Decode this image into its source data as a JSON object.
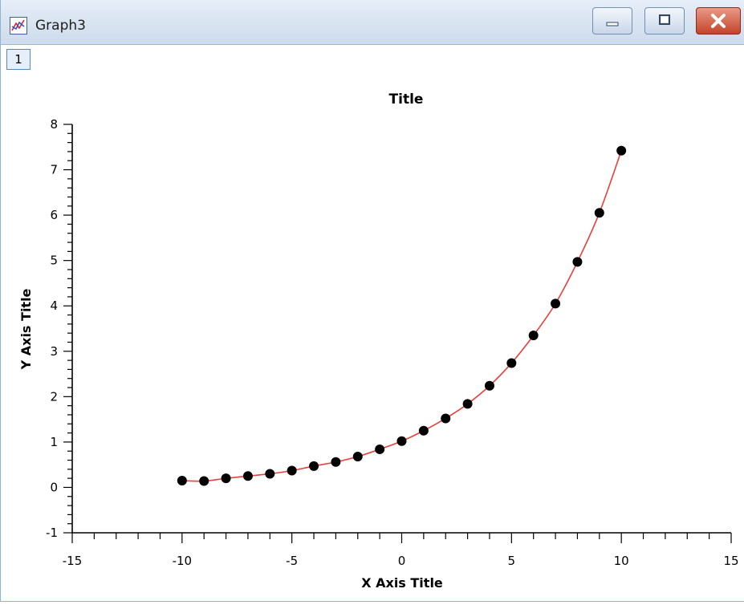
{
  "window": {
    "title": "Graph3",
    "page_tab": "1",
    "controls": [
      "minimize",
      "maximize",
      "close"
    ],
    "icons": {
      "app": "graph-app-icon",
      "minimize": "minimize-icon",
      "maximize": "maximize-icon",
      "close": "close-icon"
    }
  },
  "chart_data": {
    "type": "line",
    "title": "Title",
    "xlabel": "X Axis Title",
    "ylabel": "Y Axis Title",
    "xlim": [
      -15,
      15
    ],
    "ylim": [
      -1,
      8
    ],
    "x_ticks": [
      -15,
      -10,
      -5,
      0,
      5,
      10,
      15
    ],
    "y_ticks": [
      -1,
      0,
      1,
      2,
      3,
      4,
      5,
      6,
      7,
      8
    ],
    "grid": false,
    "legend": "none",
    "series": [
      {
        "x": [
          -10,
          -9,
          -8,
          -7,
          -6,
          -5,
          -4,
          -3,
          -2,
          -1,
          0,
          1,
          2,
          3,
          4,
          5,
          6,
          7,
          8,
          9,
          10
        ],
        "y": [
          0.15,
          0.14,
          0.2,
          0.25,
          0.3,
          0.37,
          0.47,
          0.56,
          0.68,
          0.84,
          1.02,
          1.25,
          1.52,
          1.84,
          2.24,
          2.74,
          3.35,
          4.05,
          4.97,
          6.05,
          7.42
        ],
        "color": "#e8403a",
        "marker_color": "#000000"
      }
    ]
  }
}
